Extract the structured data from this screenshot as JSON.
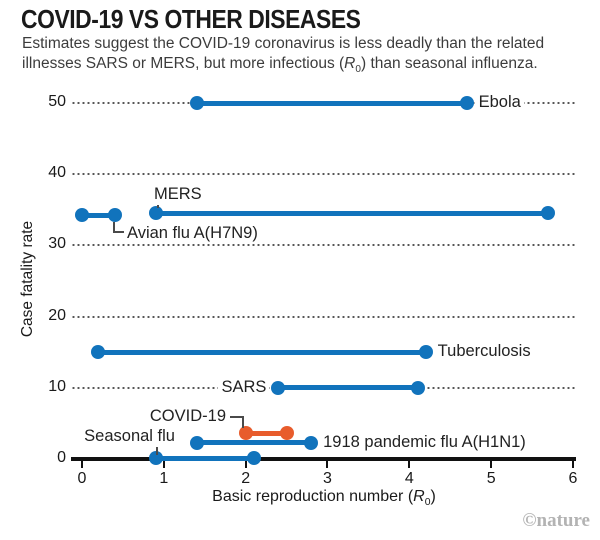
{
  "header": {
    "title": "COVID-19 VS OTHER DISEASES",
    "subtitle_line1": "Estimates suggest the COVID-19 coronavirus is less deadly than the related",
    "subtitle_line2_pre": "illnesses SARS or MERS, but more infectious (",
    "subtitle_r": "R",
    "subtitle_r_sub": "0",
    "subtitle_line2_post": ") than seasonal influenza."
  },
  "chart_data": {
    "type": "dumbbell-range",
    "title": "COVID-19 VS OTHER DISEASES",
    "xlabel_pre": "Basic reproduction number (",
    "xlabel_r": "R",
    "xlabel_r_sub": "0",
    "xlabel_post": ")",
    "ylabel": "Case fatality rate",
    "xlim": [
      0,
      6
    ],
    "ylim": [
      0,
      50
    ],
    "x_ticks": [
      0,
      1,
      2,
      3,
      4,
      5,
      6
    ],
    "y_ticks": [
      0,
      10,
      20,
      30,
      40,
      50
    ],
    "grid": "horizontal dotted leader lines at each y tick, solid black x axis",
    "legend_position": "none (direct labels on series)",
    "series": [
      {
        "id": "ebola",
        "label": "Ebola",
        "x_range": [
          1.4,
          4.7
        ],
        "y": 50,
        "color": "#1173BC"
      },
      {
        "id": "mers",
        "label": "MERS",
        "x_range": [
          0.9,
          5.7
        ],
        "y": 34.5,
        "color": "#1173BC"
      },
      {
        "id": "avian",
        "label": "Avian flu A(H7N9)",
        "x_range": [
          0.0,
          0.4
        ],
        "y": 34.2,
        "color": "#1173BC"
      },
      {
        "id": "tb",
        "label": "Tuberculosis",
        "x_range": [
          0.2,
          4.2
        ],
        "y": 15,
        "color": "#1173BC"
      },
      {
        "id": "sars",
        "label": "SARS",
        "x_range": [
          2.4,
          4.1
        ],
        "y": 10,
        "color": "#1173BC"
      },
      {
        "id": "covid",
        "label": "COVID-19",
        "x_range": [
          2.0,
          2.5
        ],
        "y": 3.6,
        "color": "#E85C2C"
      },
      {
        "id": "flu1918",
        "label": "1918 pandemic flu A(H1N1)",
        "x_range": [
          1.4,
          2.8
        ],
        "y": 2.3,
        "color": "#1173BC"
      },
      {
        "id": "seasonal",
        "label": "Seasonal flu",
        "x_range": [
          0.9,
          2.1
        ],
        "y": 0.1,
        "color": "#1173BC"
      }
    ]
  },
  "footer": {
    "credit": "©nature"
  },
  "colors": {
    "blue": "#1173BC",
    "orange": "#E85C2C",
    "grid_dot": "#555555",
    "axis": "#111111",
    "credit_gray": "#b3b3b3"
  }
}
